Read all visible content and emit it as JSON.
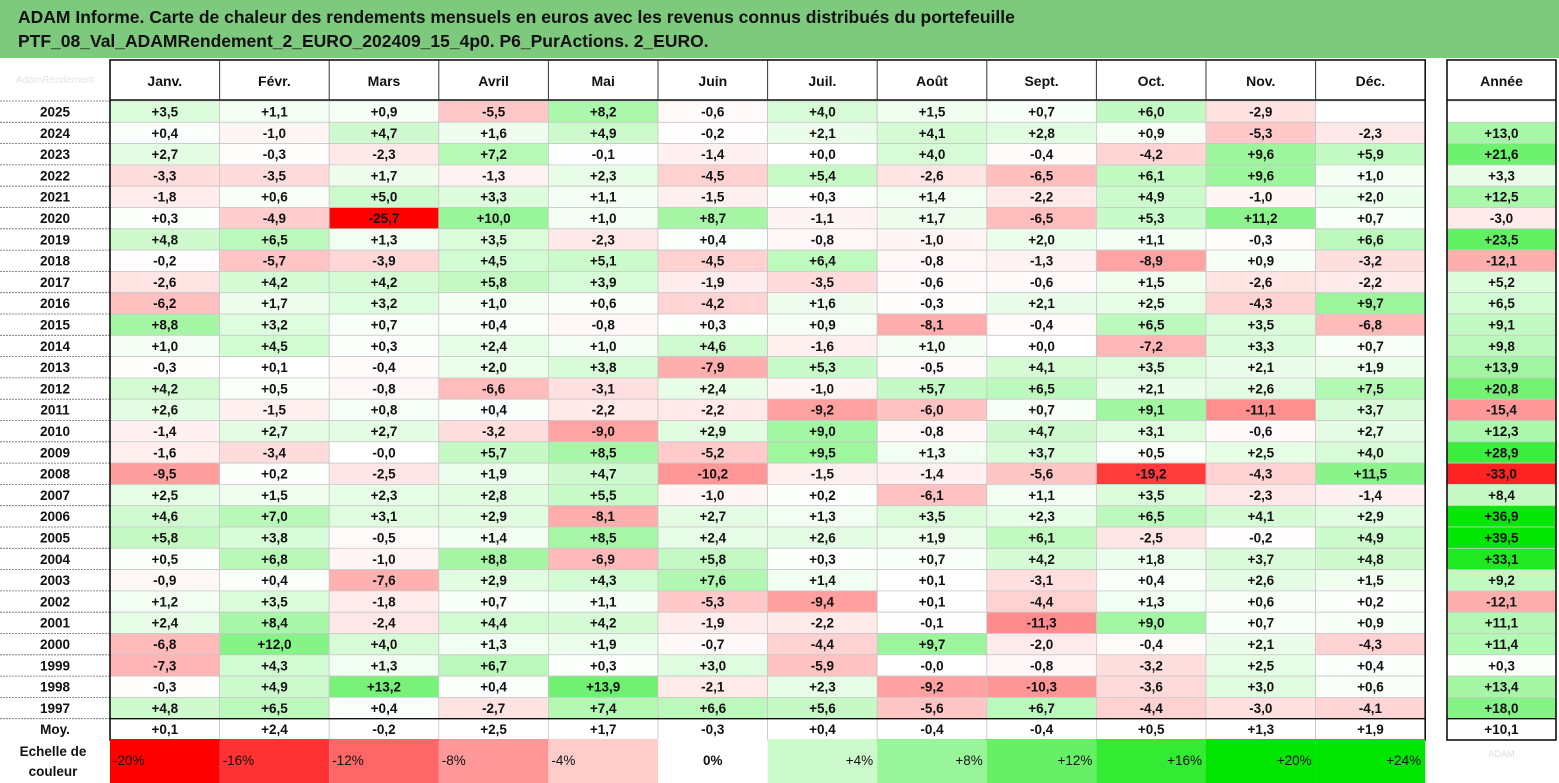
{
  "title_line1": "ADAM Informe. Carte de chaleur des rendements mensuels en euros avec les revenus connus distribués du portefeuille",
  "title_line2": "PTF_08_Val_ADAMRendement_2_EURO_202409_15_4p0. P6_PurActions. 2_EURO.",
  "watermark_top": "AdamRendement",
  "chart_data": {
    "type": "heatmap",
    "months": [
      "Janv.",
      "Févr.",
      "Mars",
      "Avril",
      "Mai",
      "Juin",
      "Juil.",
      "Août",
      "Sept.",
      "Oct.",
      "Nov.",
      "Déc."
    ],
    "year_header": "Année",
    "rows": [
      {
        "year": "2025",
        "values": [
          "+3,5",
          "+1,1",
          "+0,9",
          "-5,5",
          "+8,2",
          "-0,6",
          "+4,0",
          "+1,5",
          "+0,7",
          "+6,0",
          "-2,9",
          ""
        ],
        "annual": ""
      },
      {
        "year": "2024",
        "values": [
          "+0,4",
          "-1,0",
          "+4,7",
          "+1,6",
          "+4,9",
          "-0,2",
          "+2,1",
          "+4,1",
          "+2,8",
          "+0,9",
          "-5,3",
          "-2,3"
        ],
        "annual": "+13,0"
      },
      {
        "year": "2023",
        "values": [
          "+2,7",
          "-0,3",
          "-2,3",
          "+7,2",
          "-0,1",
          "-1,4",
          "+0,0",
          "+4,0",
          "-0,4",
          "-4,2",
          "+9,6",
          "+5,9"
        ],
        "annual": "+21,6"
      },
      {
        "year": "2022",
        "values": [
          "-3,3",
          "-3,5",
          "+1,7",
          "-1,3",
          "+2,3",
          "-4,5",
          "+5,4",
          "-2,6",
          "-6,5",
          "+6,1",
          "+9,6",
          "+1,0"
        ],
        "annual": "+3,3"
      },
      {
        "year": "2021",
        "values": [
          "-1,8",
          "+0,6",
          "+5,0",
          "+3,3",
          "+1,1",
          "-1,5",
          "+0,3",
          "+1,4",
          "-2,2",
          "+4,9",
          "-1,0",
          "+2,0"
        ],
        "annual": "+12,5"
      },
      {
        "year": "2020",
        "values": [
          "+0,3",
          "-4,9",
          "-25,7",
          "+10,0",
          "+1,0",
          "+8,7",
          "-1,1",
          "+1,7",
          "-6,5",
          "+5,3",
          "+11,2",
          "+0,7"
        ],
        "annual": "-3,0"
      },
      {
        "year": "2019",
        "values": [
          "+4,8",
          "+6,5",
          "+1,3",
          "+3,5",
          "-2,3",
          "+0,4",
          "-0,8",
          "-1,0",
          "+2,0",
          "+1,1",
          "-0,3",
          "+6,6"
        ],
        "annual": "+23,5"
      },
      {
        "year": "2018",
        "values": [
          "-0,2",
          "-5,7",
          "-3,9",
          "+4,5",
          "+5,1",
          "-4,5",
          "+6,4",
          "-0,8",
          "-1,3",
          "-8,9",
          "+0,9",
          "-3,2"
        ],
        "annual": "-12,1"
      },
      {
        "year": "2017",
        "values": [
          "-2,6",
          "+4,2",
          "+4,2",
          "+5,8",
          "+3,9",
          "-1,9",
          "-3,5",
          "-0,6",
          "-0,6",
          "+1,5",
          "-2,6",
          "-2,2"
        ],
        "annual": "+5,2"
      },
      {
        "year": "2016",
        "values": [
          "-6,2",
          "+1,7",
          "+3,2",
          "+1,0",
          "+0,6",
          "-4,2",
          "+1,6",
          "-0,3",
          "+2,1",
          "+2,5",
          "-4,3",
          "+9,7"
        ],
        "annual": "+6,5"
      },
      {
        "year": "2015",
        "values": [
          "+8,8",
          "+3,2",
          "+0,7",
          "+0,4",
          "-0,8",
          "+0,3",
          "+0,9",
          "-8,1",
          "-0,4",
          "+6,5",
          "+3,5",
          "-6,8"
        ],
        "annual": "+9,1"
      },
      {
        "year": "2014",
        "values": [
          "+1,0",
          "+4,5",
          "+0,3",
          "+2,4",
          "+1,0",
          "+4,6",
          "-1,6",
          "+1,0",
          "+0,0",
          "-7,2",
          "+3,3",
          "+0,7"
        ],
        "annual": "+9,8"
      },
      {
        "year": "2013",
        "values": [
          "-0,3",
          "+0,1",
          "-0,4",
          "+2,0",
          "+3,8",
          "-7,9",
          "+5,3",
          "-0,5",
          "+4,1",
          "+3,5",
          "+2,1",
          "+1,9"
        ],
        "annual": "+13,9"
      },
      {
        "year": "2012",
        "values": [
          "+4,2",
          "+0,5",
          "-0,8",
          "-6,6",
          "-3,1",
          "+2,4",
          "-1,0",
          "+5,7",
          "+6,5",
          "+2,1",
          "+2,6",
          "+7,5"
        ],
        "annual": "+20,8"
      },
      {
        "year": "2011",
        "values": [
          "+2,6",
          "-1,5",
          "+0,8",
          "+0,4",
          "-2,2",
          "-2,2",
          "-9,2",
          "-6,0",
          "+0,7",
          "+9,1",
          "-11,1",
          "+3,7"
        ],
        "annual": "-15,4"
      },
      {
        "year": "2010",
        "values": [
          "-1,4",
          "+2,7",
          "+2,7",
          "-3,2",
          "-9,0",
          "+2,9",
          "+9,0",
          "-0,8",
          "+4,7",
          "+3,1",
          "-0,6",
          "+2,7"
        ],
        "annual": "+12,3"
      },
      {
        "year": "2009",
        "values": [
          "-1,6",
          "-3,4",
          "-0,0",
          "+5,7",
          "+8,5",
          "-5,2",
          "+9,5",
          "+1,3",
          "+3,7",
          "+0,5",
          "+2,5",
          "+4,0"
        ],
        "annual": "+28,9"
      },
      {
        "year": "2008",
        "values": [
          "-9,5",
          "+0,2",
          "-2,5",
          "+1,9",
          "+4,7",
          "-10,2",
          "-1,5",
          "-1,4",
          "-5,6",
          "-19,2",
          "-4,3",
          "+11,5"
        ],
        "annual": "-33,0"
      },
      {
        "year": "2007",
        "values": [
          "+2,5",
          "+1,5",
          "+2,3",
          "+2,8",
          "+5,5",
          "-1,0",
          "+0,2",
          "-6,1",
          "+1,1",
          "+3,5",
          "-2,3",
          "-1,4"
        ],
        "annual": "+8,4"
      },
      {
        "year": "2006",
        "values": [
          "+4,6",
          "+7,0",
          "+3,1",
          "+2,9",
          "-8,1",
          "+2,7",
          "+1,3",
          "+3,5",
          "+2,3",
          "+6,5",
          "+4,1",
          "+2,9"
        ],
        "annual": "+36,9"
      },
      {
        "year": "2005",
        "values": [
          "+5,8",
          "+3,8",
          "-0,5",
          "+1,4",
          "+8,5",
          "+2,4",
          "+2,6",
          "+1,9",
          "+6,1",
          "-2,5",
          "-0,2",
          "+4,9"
        ],
        "annual": "+39,5"
      },
      {
        "year": "2004",
        "values": [
          "+0,5",
          "+6,8",
          "-1,0",
          "+8,8",
          "-6,9",
          "+5,8",
          "+0,3",
          "+0,7",
          "+4,2",
          "+1,8",
          "+3,7",
          "+4,8"
        ],
        "annual": "+33,1"
      },
      {
        "year": "2003",
        "values": [
          "-0,9",
          "+0,4",
          "-7,6",
          "+2,9",
          "+4,3",
          "+7,6",
          "+1,4",
          "+0,1",
          "-3,1",
          "+0,4",
          "+2,6",
          "+1,5"
        ],
        "annual": "+9,2"
      },
      {
        "year": "2002",
        "values": [
          "+1,2",
          "+3,5",
          "-1,8",
          "+0,7",
          "+1,1",
          "-5,3",
          "-9,4",
          "+0,1",
          "-4,4",
          "+1,3",
          "+0,6",
          "+0,2"
        ],
        "annual": "-12,1"
      },
      {
        "year": "2001",
        "values": [
          "+2,4",
          "+8,4",
          "-2,4",
          "+4,4",
          "+4,2",
          "-1,9",
          "-2,2",
          "-0,1",
          "-11,3",
          "+9,0",
          "+0,7",
          "+0,9"
        ],
        "annual": "+11,1"
      },
      {
        "year": "2000",
        "values": [
          "-6,8",
          "+12,0",
          "+4,0",
          "+1,3",
          "+1,9",
          "-0,7",
          "-4,4",
          "+9,7",
          "-2,0",
          "-0,4",
          "+2,1",
          "-4,3"
        ],
        "annual": "+11,4"
      },
      {
        "year": "1999",
        "values": [
          "-7,3",
          "+4,3",
          "+1,3",
          "+6,7",
          "+0,3",
          "+3,0",
          "-5,9",
          "-0,0",
          "-0,8",
          "-3,2",
          "+2,5",
          "+0,4"
        ],
        "annual": "+0,3"
      },
      {
        "year": "1998",
        "values": [
          "-0,3",
          "+4,9",
          "+13,2",
          "+0,4",
          "+13,9",
          "-2,1",
          "+2,3",
          "-9,2",
          "-10,3",
          "-3,6",
          "+3,0",
          "+0,6"
        ],
        "annual": "+13,4"
      },
      {
        "year": "1997",
        "values": [
          "+4,8",
          "+6,5",
          "+0,4",
          "-2,7",
          "+7,4",
          "+6,6",
          "+5,6",
          "-5,6",
          "+6,7",
          "-4,4",
          "-3,0",
          "-4,1"
        ],
        "annual": "+18,0"
      }
    ],
    "average": {
      "label": "Moy.",
      "values": [
        "+0,1",
        "+2,4",
        "-0,2",
        "+2,5",
        "+1,7",
        "-0,3",
        "+0,4",
        "-0,4",
        "-0,4",
        "+0,5",
        "+1,3",
        "+1,9"
      ],
      "annual": "+10,1"
    },
    "scale": {
      "label_line1": "Echelle de",
      "label_line2": "couleur",
      "stops": [
        "-20%",
        "-16%",
        "-12%",
        "-8%",
        "-4%",
        "0%",
        "+4%",
        "+8%",
        "+12%",
        "+16%",
        "+20%",
        "+24%"
      ]
    },
    "watermark_bottom": "ADAM"
  }
}
